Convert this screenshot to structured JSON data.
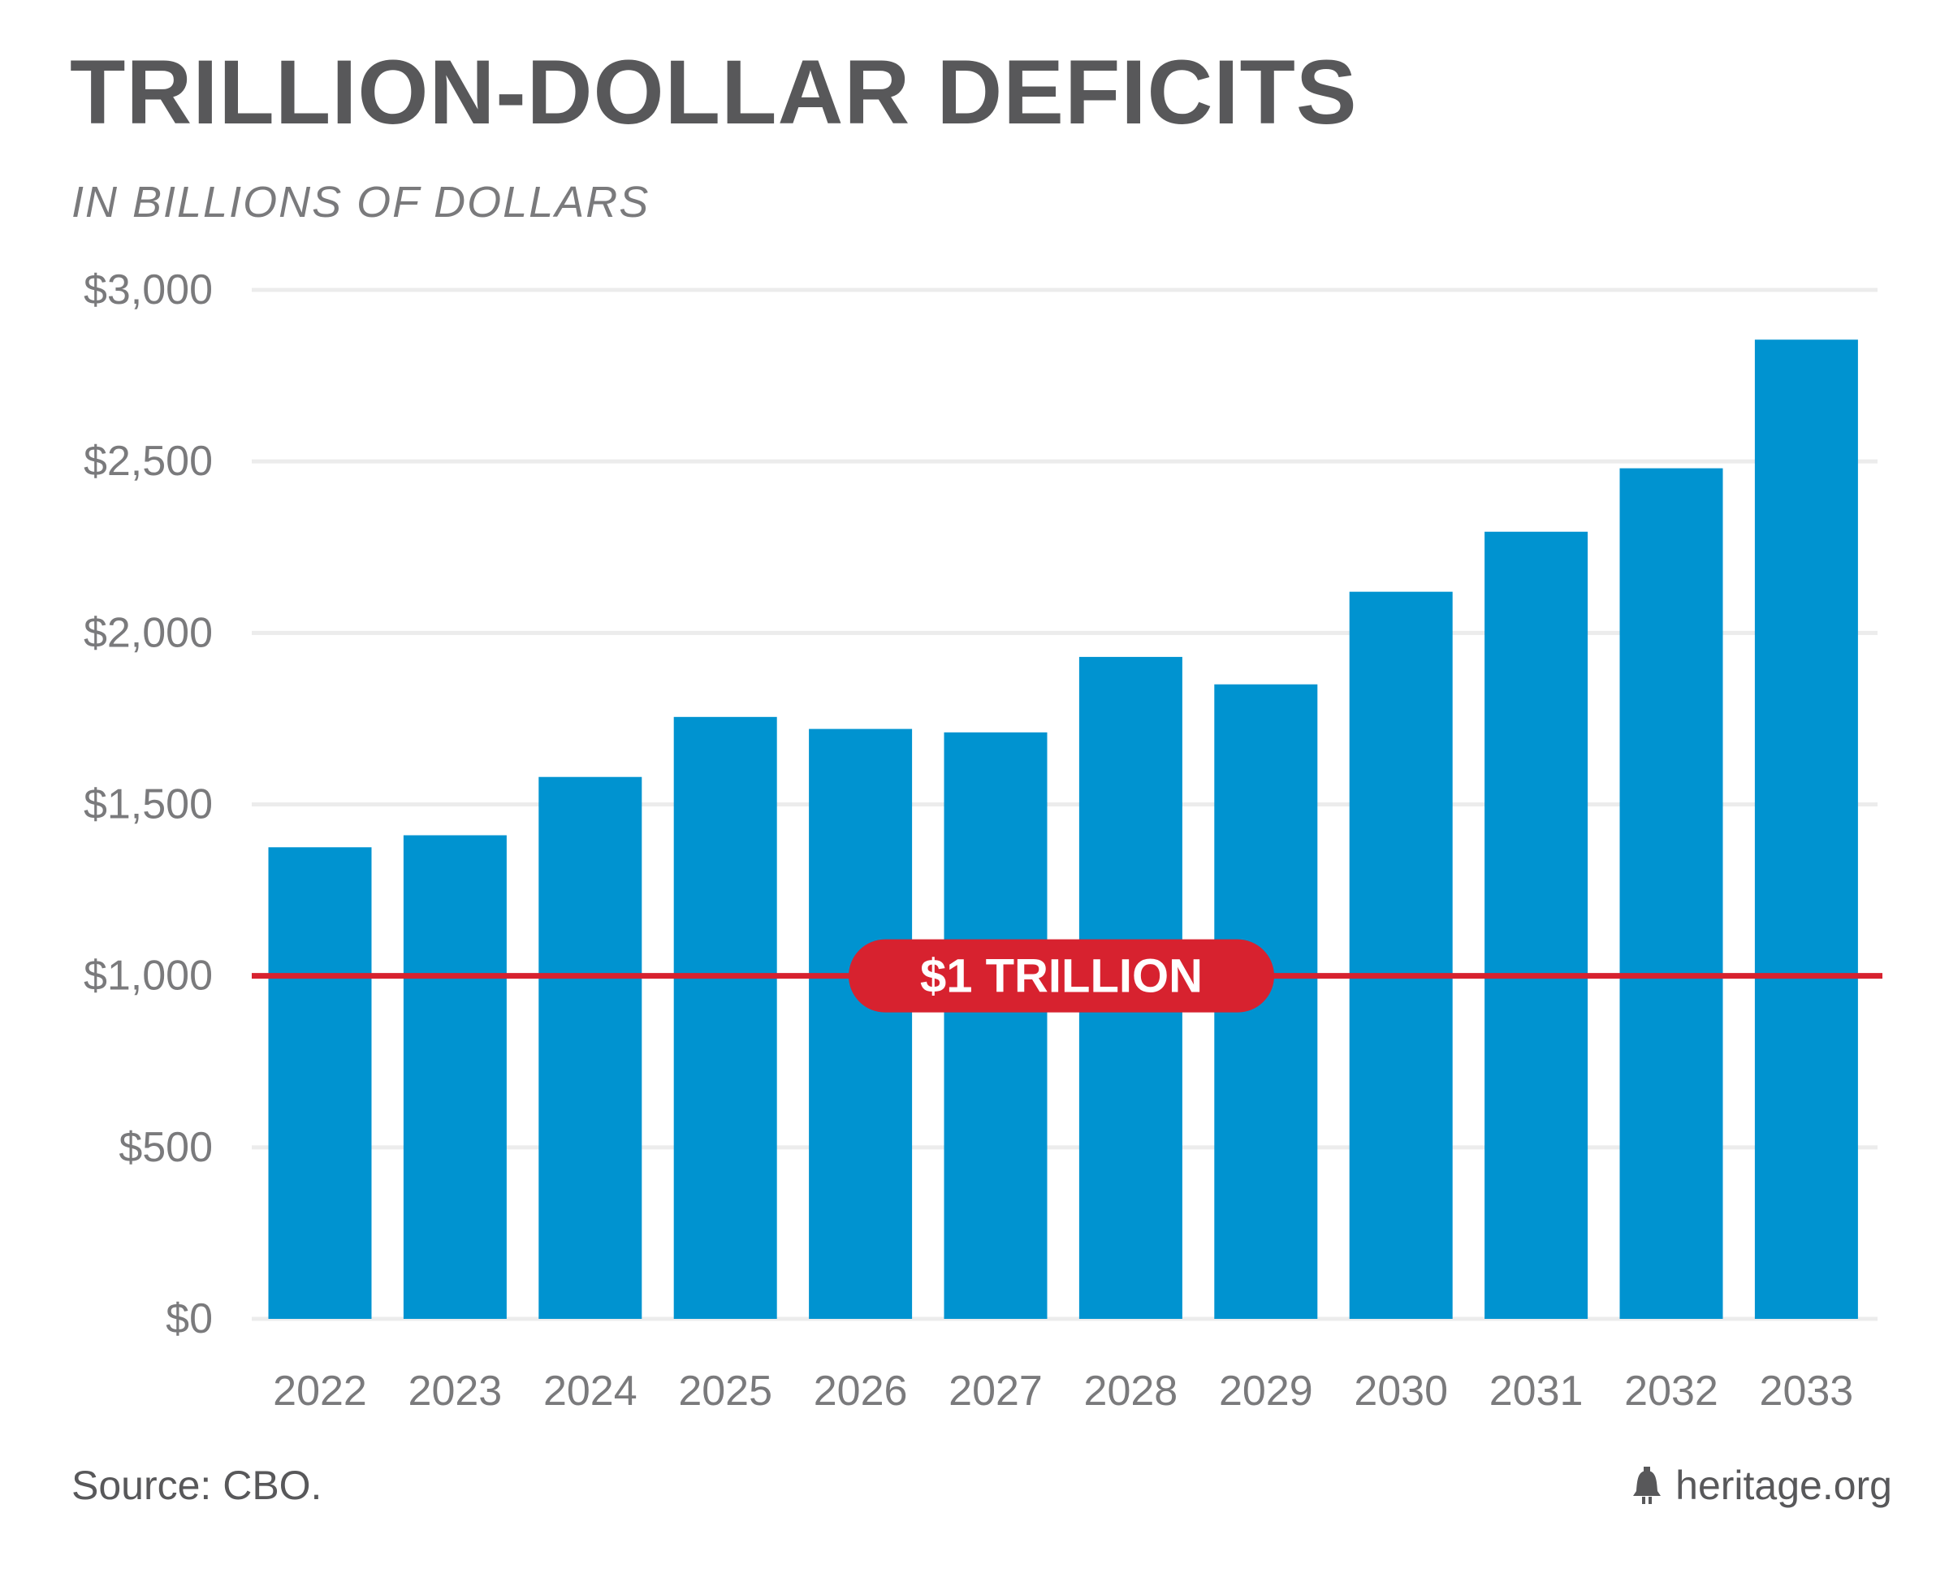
{
  "header": {
    "title": "TRILLION-DOLLAR DEFICITS",
    "subtitle": "IN BILLIONS OF DOLLARS"
  },
  "footer": {
    "source": "Source: CBO.",
    "brand": "heritage.org",
    "brand_icon": "liberty-bell-icon"
  },
  "chart_data": {
    "type": "bar",
    "title": "TRILLION-DOLLAR DEFICITS",
    "subtitle": "IN BILLIONS OF DOLLARS",
    "xlabel": "",
    "ylabel": "",
    "categories": [
      "2022",
      "2023",
      "2024",
      "2025",
      "2026",
      "2027",
      "2028",
      "2029",
      "2030",
      "2031",
      "2032",
      "2033"
    ],
    "values": [
      1375,
      1410,
      1580,
      1755,
      1720,
      1710,
      1930,
      1850,
      2120,
      2295,
      2480,
      2855
    ],
    "ylim": [
      0,
      3000
    ],
    "yticks": [
      0,
      500,
      1000,
      1500,
      2000,
      2500,
      3000
    ],
    "ytick_labels": [
      "$0",
      "$500",
      "$1,000",
      "$1,500",
      "$2,000",
      "$2,500",
      "$3,000"
    ],
    "grid": true,
    "reference_line": {
      "value": 1000,
      "label": "$1 TRILLION"
    },
    "colors": {
      "bar": "#0093d0",
      "reference": "#d7222f",
      "grid": "#ececec",
      "tick_text": "#7a7a7c"
    }
  }
}
